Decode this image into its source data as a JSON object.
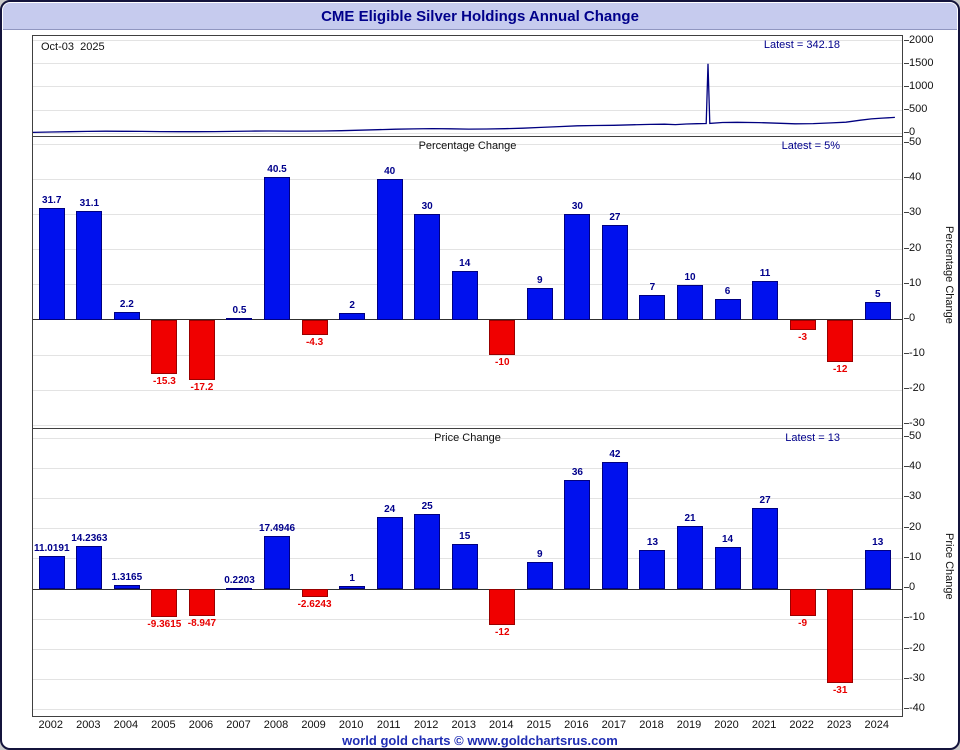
{
  "header": {
    "title": "CME Eligible Silver Holdings Annual Change"
  },
  "footer": {
    "text": "world gold charts © www.goldchartsrus.com"
  },
  "colors": {
    "positive_bar": "#0011ee",
    "negative_bar": "#f00000",
    "line": "#000080",
    "positive_label": "#00008b",
    "negative_label": "#e80000",
    "header_bg": "#c6cbee",
    "title_text": "#00008b",
    "footer_text": "#1f2db4"
  },
  "x_axis": {
    "years": [
      "2002",
      "2003",
      "2004",
      "2005",
      "2006",
      "2007",
      "2008",
      "2009",
      "2010",
      "2011",
      "2012",
      "2013",
      "2014",
      "2015",
      "2016",
      "2017",
      "2018",
      "2019",
      "2020",
      "2021",
      "2022",
      "2023",
      "2024"
    ]
  },
  "chart_data": [
    {
      "type": "line",
      "title": "",
      "date_label": "Oct-03  2025",
      "latest_label": "Latest = 342.18",
      "ylabel": "",
      "ylim": [
        -60,
        2100
      ],
      "yticks": [
        2000,
        1500,
        1000,
        500,
        0
      ],
      "x_range": [
        2002,
        2026
      ],
      "points": [
        [
          2002.0,
          18
        ],
        [
          2002.5,
          26
        ],
        [
          2003.0,
          33
        ],
        [
          2003.5,
          39
        ],
        [
          2004.0,
          43
        ],
        [
          2004.5,
          42
        ],
        [
          2005.0,
          39
        ],
        [
          2005.5,
          35
        ],
        [
          2006.0,
          32
        ],
        [
          2006.5,
          32
        ],
        [
          2007.0,
          34
        ],
        [
          2007.5,
          39
        ],
        [
          2008.0,
          46
        ],
        [
          2008.5,
          48
        ],
        [
          2009.0,
          46
        ],
        [
          2009.5,
          46
        ],
        [
          2010.0,
          48
        ],
        [
          2010.5,
          55
        ],
        [
          2011.0,
          66
        ],
        [
          2011.5,
          77
        ],
        [
          2012.0,
          87
        ],
        [
          2012.5,
          94
        ],
        [
          2013.0,
          100
        ],
        [
          2013.5,
          96
        ],
        [
          2014.0,
          89
        ],
        [
          2014.5,
          92
        ],
        [
          2015.0,
          97
        ],
        [
          2015.5,
          109
        ],
        [
          2016.0,
          126
        ],
        [
          2016.5,
          144
        ],
        [
          2017.0,
          160
        ],
        [
          2017.5,
          167
        ],
        [
          2018.0,
          172
        ],
        [
          2018.5,
          181
        ],
        [
          2019.0,
          191
        ],
        [
          2019.4,
          194
        ],
        [
          2019.7,
          186
        ],
        [
          2020.0,
          199
        ],
        [
          2020.3,
          206
        ],
        [
          2020.55,
          211
        ],
        [
          2020.6,
          1500
        ],
        [
          2020.65,
          213
        ],
        [
          2021.0,
          231
        ],
        [
          2021.4,
          237
        ],
        [
          2022.0,
          229
        ],
        [
          2022.5,
          216
        ],
        [
          2023.0,
          204
        ],
        [
          2023.5,
          208
        ],
        [
          2024.0,
          224
        ],
        [
          2024.4,
          238
        ],
        [
          2024.8,
          282
        ],
        [
          2025.1,
          310
        ],
        [
          2025.4,
          326
        ],
        [
          2025.75,
          342.18
        ]
      ]
    },
    {
      "type": "bar",
      "title": "Percentage Change",
      "latest_label": "Latest = 5%",
      "ylabel": "Percentage Change",
      "ylim": [
        -31,
        52
      ],
      "yticks": [
        50,
        40,
        30,
        20,
        10,
        0,
        -10,
        -20,
        -30
      ],
      "categories": [
        2002,
        2003,
        2004,
        2005,
        2006,
        2007,
        2008,
        2009,
        2010,
        2011,
        2012,
        2013,
        2014,
        2015,
        2016,
        2017,
        2018,
        2019,
        2020,
        2021,
        2022,
        2023,
        2024
      ],
      "values": [
        31.7,
        31.1,
        2.2,
        -15.3,
        -17.2,
        0.5,
        40.5,
        -4.3,
        2,
        40,
        30,
        14,
        -10,
        9,
        30,
        27,
        7,
        10,
        6,
        11,
        -3,
        -12,
        5
      ],
      "labels": [
        "31.7",
        "31.1",
        "2.2",
        "-15.3",
        "-17.2",
        "0.5",
        "40.5",
        "-4.3",
        "2",
        "40",
        "30",
        "14",
        "-10",
        "9",
        "30",
        "27",
        "7",
        "10",
        "6",
        "11",
        "-3",
        "-12",
        "5"
      ]
    },
    {
      "type": "bar",
      "title": "Price Change",
      "latest_label": "Latest = 13",
      "ylabel": "Price Change",
      "ylim": [
        -43,
        53
      ],
      "yticks": [
        50,
        40,
        30,
        20,
        10,
        0,
        -10,
        -20,
        -30,
        -40
      ],
      "categories": [
        2002,
        2003,
        2004,
        2005,
        2006,
        2007,
        2008,
        2009,
        2010,
        2011,
        2012,
        2013,
        2014,
        2015,
        2016,
        2017,
        2018,
        2019,
        2020,
        2021,
        2022,
        2023,
        2024
      ],
      "values": [
        11.0191,
        14.2363,
        1.3165,
        -9.3615,
        -8.947,
        0.2203,
        17.4946,
        -2.6243,
        1,
        24,
        25,
        15,
        -12,
        9,
        36,
        42,
        13,
        21,
        14,
        27,
        -9,
        -31,
        13
      ],
      "labels": [
        "11.0191",
        "14.2363",
        "1.3165",
        "-9.3615",
        "-8.947",
        "0.2203",
        "17.4946",
        "-2.6243",
        "1",
        "24",
        "25",
        "15",
        "-12",
        "9",
        "36",
        "42",
        "13",
        "21",
        "14",
        "27",
        "-9",
        "-31",
        "13"
      ]
    }
  ]
}
